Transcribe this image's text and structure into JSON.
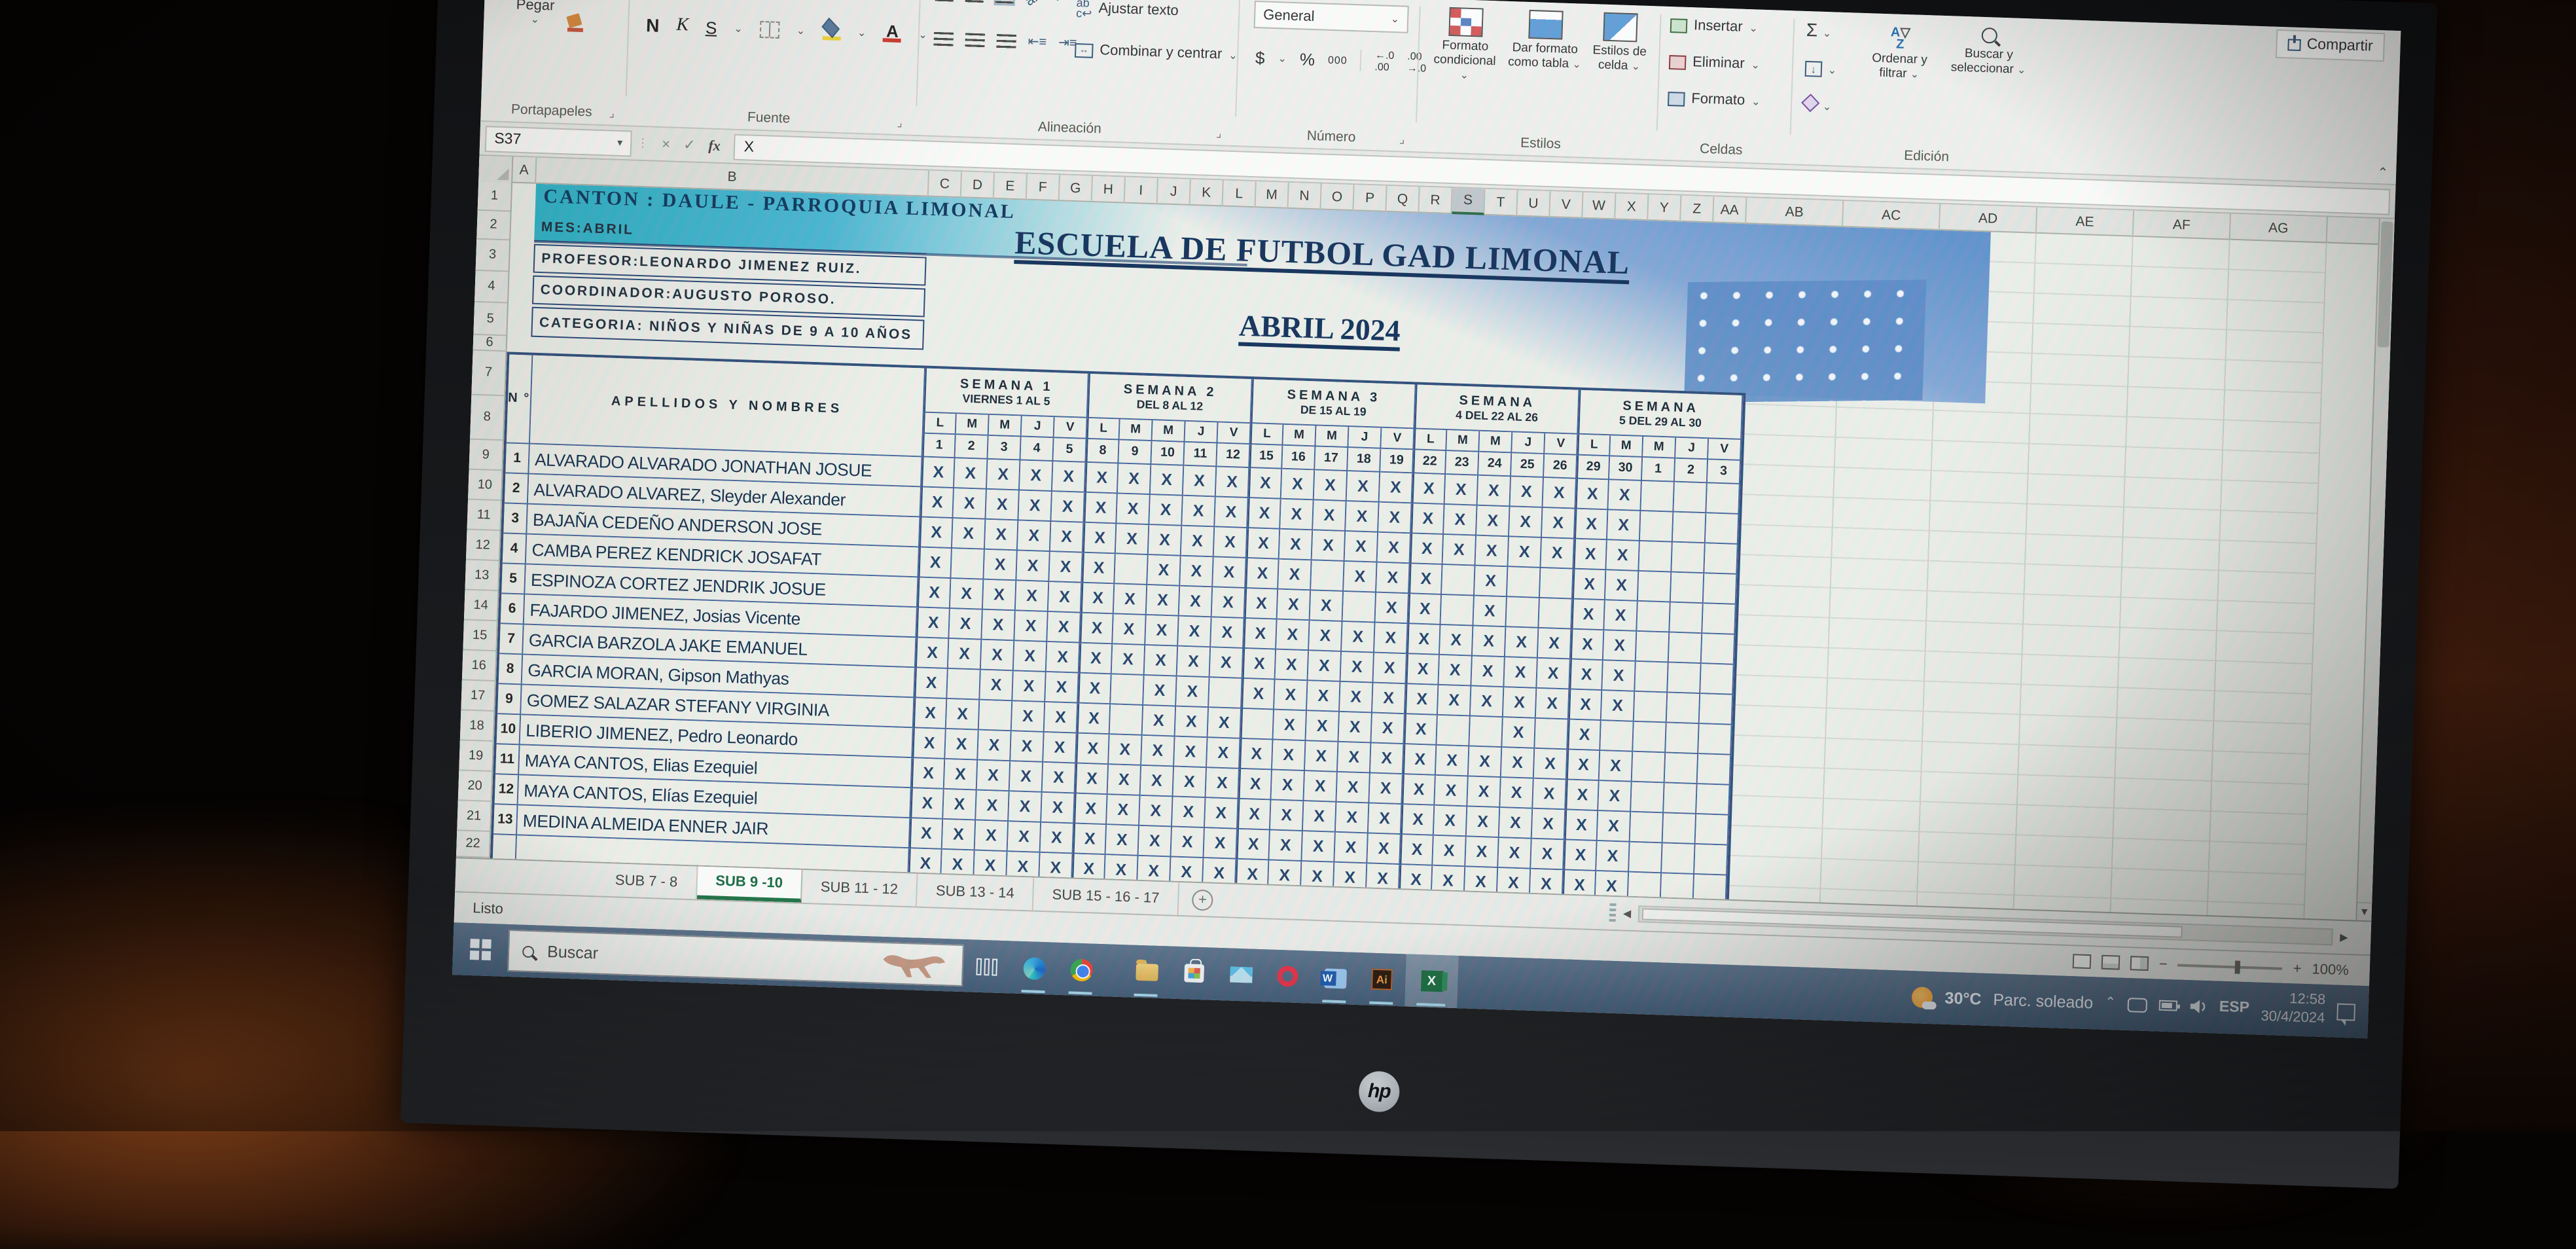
{
  "ribbon": {
    "paste_label": "Pegar",
    "groups": {
      "clipboard": "Portapapeles",
      "font": "Fuente",
      "alignment": "Alineación",
      "number": "Número",
      "styles": "Estilos",
      "cells": "Celdas",
      "editing": "Edición"
    },
    "font_bold": "N",
    "font_italic": "K",
    "font_underline": "S",
    "wrap_text": "Ajustar texto",
    "merge_center": "Combinar y centrar",
    "number_format": "General",
    "currency": "$",
    "percent": "%",
    "thousands": "000",
    "cond_format": "Formato condicional",
    "format_table": "Dar formato como tabla",
    "cell_styles": "Estilos de celda",
    "insert": "Insertar",
    "delete": "Eliminar",
    "format": "Formato",
    "autosum": "Σ",
    "sort_filter": "Ordenar y filtrar",
    "find_select": "Buscar y seleccionar",
    "share": "Compartir"
  },
  "formula_bar": {
    "name_box": "S37",
    "formula": "X",
    "fx": "fx"
  },
  "sheet": {
    "columns": {
      "a": "A",
      "b": "B",
      "days": [
        "C",
        "D",
        "E",
        "F",
        "G",
        "H",
        "I",
        "J",
        "K",
        "L",
        "M",
        "N",
        "O",
        "P",
        "Q",
        "R",
        "S",
        "T",
        "U",
        "V",
        "W",
        "X",
        "Y",
        "Z",
        "AA"
      ],
      "wide": [
        "AB",
        "AC",
        "AD",
        "AE",
        "AF",
        "AG"
      ],
      "selected": "S"
    },
    "row_count": 22
  },
  "info": {
    "r1": "CANTON : DAULE - PARROQUIA LIMONAL",
    "r2": "MES:ABRIL",
    "r3": "PROFESOR:LEONARDO JIMENEZ RUIZ.",
    "r4": "COORDINADOR:AUGUSTO POROSO.",
    "r5": "CATEGORIA: NIÑOS Y NIÑAS DE 9 A 10 AÑOS"
  },
  "title": {
    "line1": "ESCUELA DE FUTBOL GAD LIMONAL",
    "line2": "ABRIL 2024"
  },
  "table": {
    "num_header": "N °",
    "name_header": "APELLIDOS Y NOMBRES",
    "day_letters": [
      "L",
      "M",
      "M",
      "J",
      "V"
    ],
    "weeks": [
      {
        "title": "SEMANA 1",
        "sub": "VIERNES 1 AL 5",
        "days": [
          "1",
          "2",
          "3",
          "4",
          "5"
        ]
      },
      {
        "title": "SEMANA 2",
        "sub": "DEL 8 AL 12",
        "days": [
          "8",
          "9",
          "10",
          "11",
          "12"
        ]
      },
      {
        "title": "SEMANA 3",
        "sub": "DE 15 AL 19",
        "days": [
          "15",
          "16",
          "17",
          "18",
          "19"
        ]
      },
      {
        "title": "SEMANA",
        "sub": "4 DEL 22 AL 26",
        "days": [
          "22",
          "23",
          "24",
          "25",
          "26"
        ]
      },
      {
        "title": "SEMANA",
        "sub": "5 DEL 29 AL 30",
        "days": [
          "29",
          "30",
          "1",
          "2",
          "3"
        ]
      }
    ],
    "students": [
      {
        "n": "1",
        "name": "ALVARADO ALVARADO JONATHAN JOSUE",
        "marks": "XXXXXXXXXXXXXXXXXXXXXX..."
      },
      {
        "n": "2",
        "name": "ALVARADO ALVAREZ, Sleyder Alexander",
        "marks": "XXXXXXXXXXXXXXXXXXXXXX..."
      },
      {
        "n": "3",
        "name": "BAJAÑA CEDEÑO ANDERSON JOSE",
        "marks": "XXXXXXXXXXXXXXXXXXXXXX..."
      },
      {
        "n": "4",
        "name": "CAMBA PEREZ KENDRICK JOSAFAT",
        "marks": "X.XXXX.XXXXX.XXX.X..XX..."
      },
      {
        "n": "5",
        "name": "ESPINOZA CORTEZ JENDRIK JOSUE",
        "marks": "XXXXXXXXXXXXX.XX.X..XX..."
      },
      {
        "n": "6",
        "name": "FAJARDO JIMENEZ, Josias Vicente",
        "marks": "XXXXXXXXXXXXXXXXXXXXXX..."
      },
      {
        "n": "7",
        "name": "GARCIA BARZOLA JAKE EMANUEL",
        "marks": "XXXXXXXXXXXXXXXXXXXXXX..."
      },
      {
        "n": "8",
        "name": "GARCIA MORAN, Gipson Mathyas",
        "marks": "X.XXXX.XX.XXXXXXXXXXXX..."
      },
      {
        "n": "9",
        "name": "GOMEZ SALAZAR STEFANY VIRGINIA",
        "marks": "XX.XXX.XXX.XXXXX..X.X...."
      },
      {
        "n": "10",
        "name": "LIBERIO JIMENEZ, Pedro Leonardo",
        "marks": "XXXXXXXXXXXXXXXXXXXXXX..."
      },
      {
        "n": "11",
        "name": "MAYA CANTOS, Elias Ezequiel",
        "marks": "XXXXXXXXXXXXXXXXXXXXXX..."
      },
      {
        "n": "12",
        "name": "MAYA CANTOS, Elías Ezequiel",
        "marks": "XXXXXXXXXXXXXXXXXXXXXX..."
      },
      {
        "n": "13",
        "name": "MEDINA ALMEIDA ENNER JAIR",
        "marks": "XXXXXXXXXXXXXXXXXXXXXX..."
      }
    ],
    "clipped_row_marks": "XXXXXXXXXXXXXXXXXXXXXX..."
  },
  "sheet_tabs": {
    "tabs": [
      "SUB 7 - 8",
      "SUB 9 -10",
      "SUB 11 - 12",
      "SUB 13 - 14",
      "SUB 15 - 16 - 17"
    ],
    "active": "SUB 9 -10"
  },
  "status_bar": {
    "mode": "Listo",
    "zoom": "100%"
  },
  "taskbar": {
    "search_label": "Buscar",
    "weather_temp": "30°C",
    "weather_desc": "Parc. soleado",
    "lang": "ESP",
    "time": "12:58",
    "date": "30/4/2024"
  },
  "laptop": {
    "logo": "hp"
  },
  "icons": {
    "windows-logo": "four-pane grid",
    "search-icon": "magnifier",
    "share-icon": "box+arrow",
    "autosum-icon": "Σ",
    "sort-icon": "AZ+funnel",
    "find-icon": "magnifier",
    "new-sheet-icon": "+",
    "weather-icon": "sun+cloud",
    "volume-icon": "speaker",
    "battery-icon": "battery"
  }
}
